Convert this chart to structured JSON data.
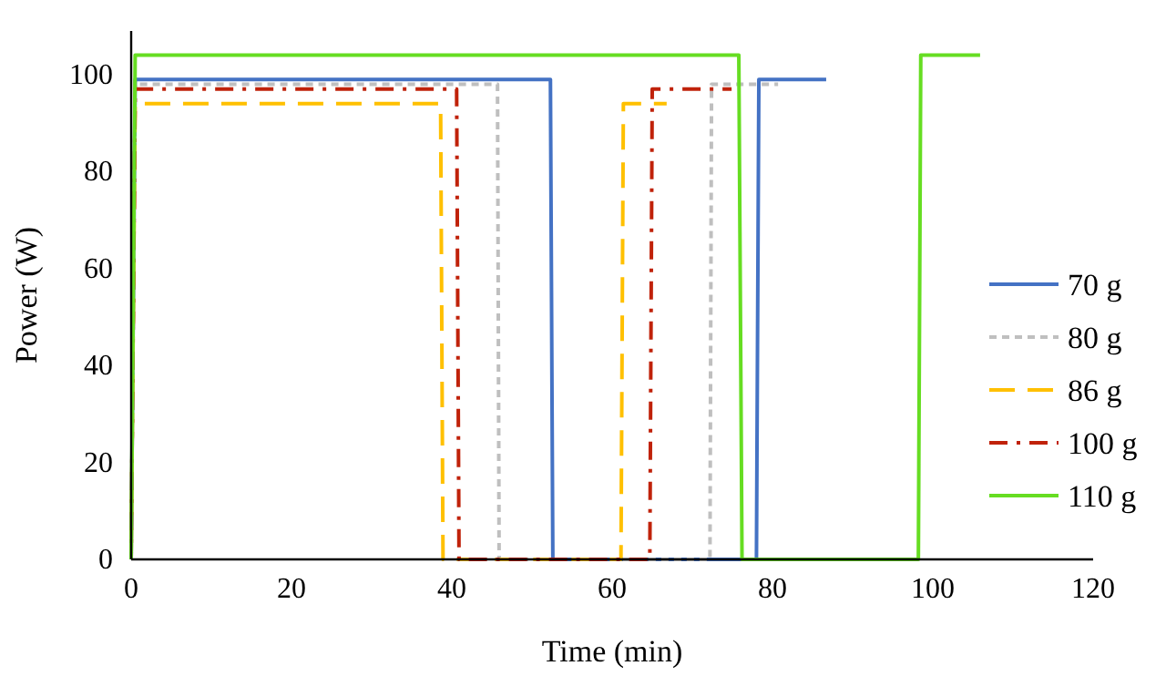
{
  "chart_data": {
    "type": "line",
    "xlabel": "Time (min)",
    "ylabel": "Power (W)",
    "xlim": [
      0,
      120
    ],
    "xticks": [
      0,
      20,
      40,
      60,
      80,
      100,
      120
    ],
    "ylim": [
      0,
      109
    ],
    "yticks": [
      0,
      20,
      40,
      60,
      80,
      100
    ],
    "grid": false,
    "legend": "right",
    "series": [
      {
        "name": "70 g",
        "color": "#4472c4",
        "line_style": "solid",
        "x": [
          0,
          0.5,
          52.3,
          52.6,
          78,
          78.3,
          86.7
        ],
        "values": [
          0,
          99,
          99,
          0,
          0,
          99,
          99
        ]
      },
      {
        "name": "80 g",
        "color": "#bfbfbf",
        "line_style": "dotted",
        "x": [
          0,
          0.5,
          45.7,
          45.9,
          72.2,
          72.4,
          80.7
        ],
        "values": [
          0,
          98,
          98,
          0,
          0,
          98,
          98
        ]
      },
      {
        "name": "86 g",
        "color": "#ffc000",
        "line_style": "dashed",
        "x": [
          0,
          0.5,
          38.6,
          38.9,
          61.1,
          61.4,
          66.8
        ],
        "values": [
          0,
          94,
          94,
          0,
          0,
          94,
          94
        ]
      },
      {
        "name": "100 g",
        "color": "#c0220a",
        "line_style": "dashdot",
        "x": [
          0,
          0.5,
          40.6,
          40.9,
          64.7,
          65,
          74.9
        ],
        "values": [
          0,
          97,
          97,
          0,
          0,
          97,
          97
        ]
      },
      {
        "name": "110 g",
        "color": "#66dd22",
        "line_style": "solid",
        "x": [
          0,
          0.5,
          75.8,
          76.2,
          98.2,
          98.5,
          105.9
        ],
        "values": [
          0,
          104,
          104,
          0,
          0,
          104,
          104
        ]
      }
    ]
  }
}
